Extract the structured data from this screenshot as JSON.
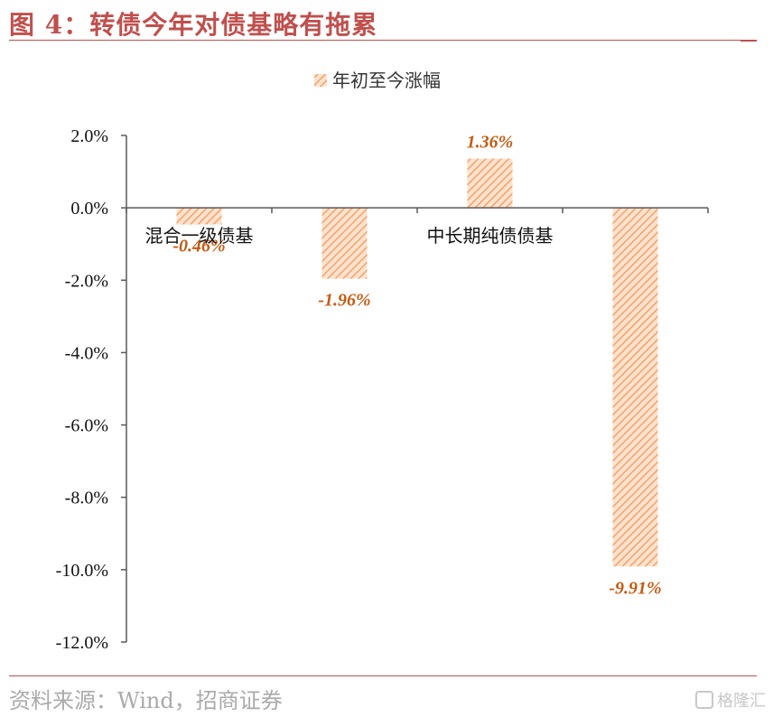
{
  "figure": {
    "title": "图 4：转债今年对债基略有拖累",
    "source": "资料来源：Wind，招商证券",
    "watermark": "格隆汇"
  },
  "chart_data": {
    "type": "bar",
    "legend": {
      "label": "年初至今涨幅",
      "position": "top-center"
    },
    "categories": [
      "混合一级债基",
      "",
      "中长期纯债债基",
      ""
    ],
    "series": [
      {
        "name": "年初至今涨幅",
        "values": [
          -0.46,
          -1.96,
          1.36,
          -9.91
        ]
      }
    ],
    "data_labels": [
      "-0.46%",
      "-1.96%",
      "1.36%",
      "-9.91%"
    ],
    "ylim": [
      -12.0,
      2.0
    ],
    "yticks": [
      "2.0%",
      "0.0%",
      "-2.0%",
      "-4.0%",
      "-6.0%",
      "-8.0%",
      "-10.0%",
      "-12.0%"
    ],
    "ytick_values": [
      2,
      0,
      -2,
      -4,
      -6,
      -8,
      -10,
      -12
    ],
    "grid": false,
    "colors": {
      "bar": "#f4b183",
      "label": "#c55a11",
      "axis": "#595959"
    }
  }
}
